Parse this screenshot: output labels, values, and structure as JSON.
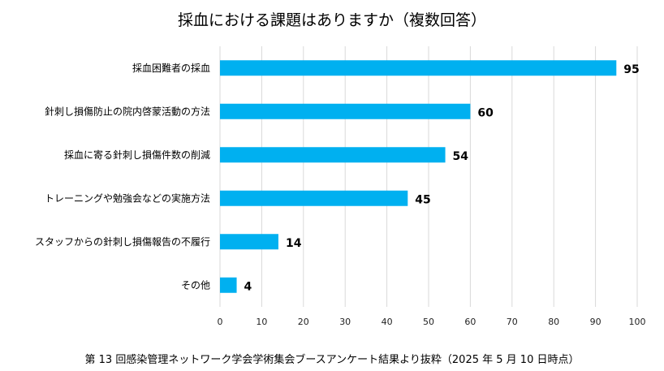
{
  "chart_data": {
    "type": "bar",
    "orientation": "horizontal",
    "title": "採血における課題はありますか（複数回答）",
    "categories": [
      "採血困難者の採血",
      "針刺し損傷防止の院内啓蒙活動の方法",
      "採血に寄る針刺し損傷件数の削減",
      "トレーニングや勉強会などの実施方法",
      "スタッフからの針刺し損傷報告の不履行",
      "その他"
    ],
    "values": [
      95,
      60,
      54,
      45,
      14,
      4
    ],
    "xlim": [
      0,
      100
    ],
    "xticks": [
      "0",
      "10",
      "20",
      "30",
      "40",
      "50",
      "60",
      "70",
      "80",
      "90",
      "100"
    ],
    "grid": true,
    "bar_color": "#00B0F0",
    "gridline_color": "#D9D9D9"
  },
  "footer": {
    "note": "第 13 回感染管理ネットワーク学会学術集会ブースアンケート結果より抜粋（2025 年 5 月 10 日時点）"
  }
}
